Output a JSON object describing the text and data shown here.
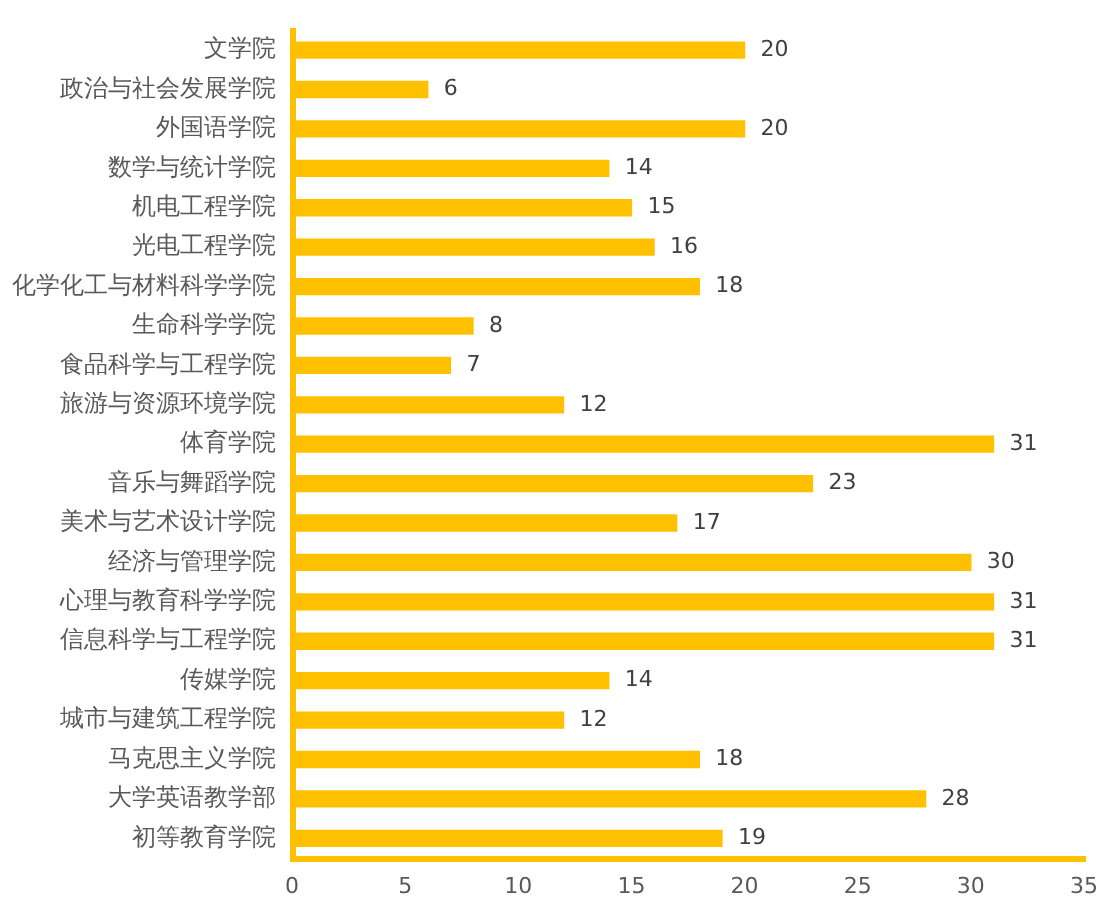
{
  "chart_data": {
    "type": "bar",
    "orientation": "horizontal",
    "categories": [
      "文学院",
      "政治与社会发展学院",
      "外国语学院",
      "数学与统计学院",
      "机电工程学院",
      "光电工程学院",
      "化学化工与材料科学学院",
      "生命科学学院",
      "食品科学与工程学院",
      "旅游与资源环境学院",
      "体育学院",
      "音乐与舞蹈学院",
      "美术与艺术设计学院",
      "经济与管理学院",
      "心理与教育科学学院",
      "信息科学与工程学院",
      "传媒学院",
      "城市与建筑工程学院",
      "马克思主义学院",
      "大学英语教学部",
      "初等教育学院"
    ],
    "values": [
      20,
      6,
      20,
      14,
      15,
      16,
      18,
      8,
      7,
      12,
      31,
      23,
      17,
      30,
      31,
      31,
      14,
      12,
      18,
      28,
      19
    ],
    "color": "#ffc000",
    "xlim": [
      0,
      35
    ],
    "xticks": [
      0,
      5,
      10,
      15,
      20,
      25,
      30,
      35
    ],
    "data_labels": true
  }
}
